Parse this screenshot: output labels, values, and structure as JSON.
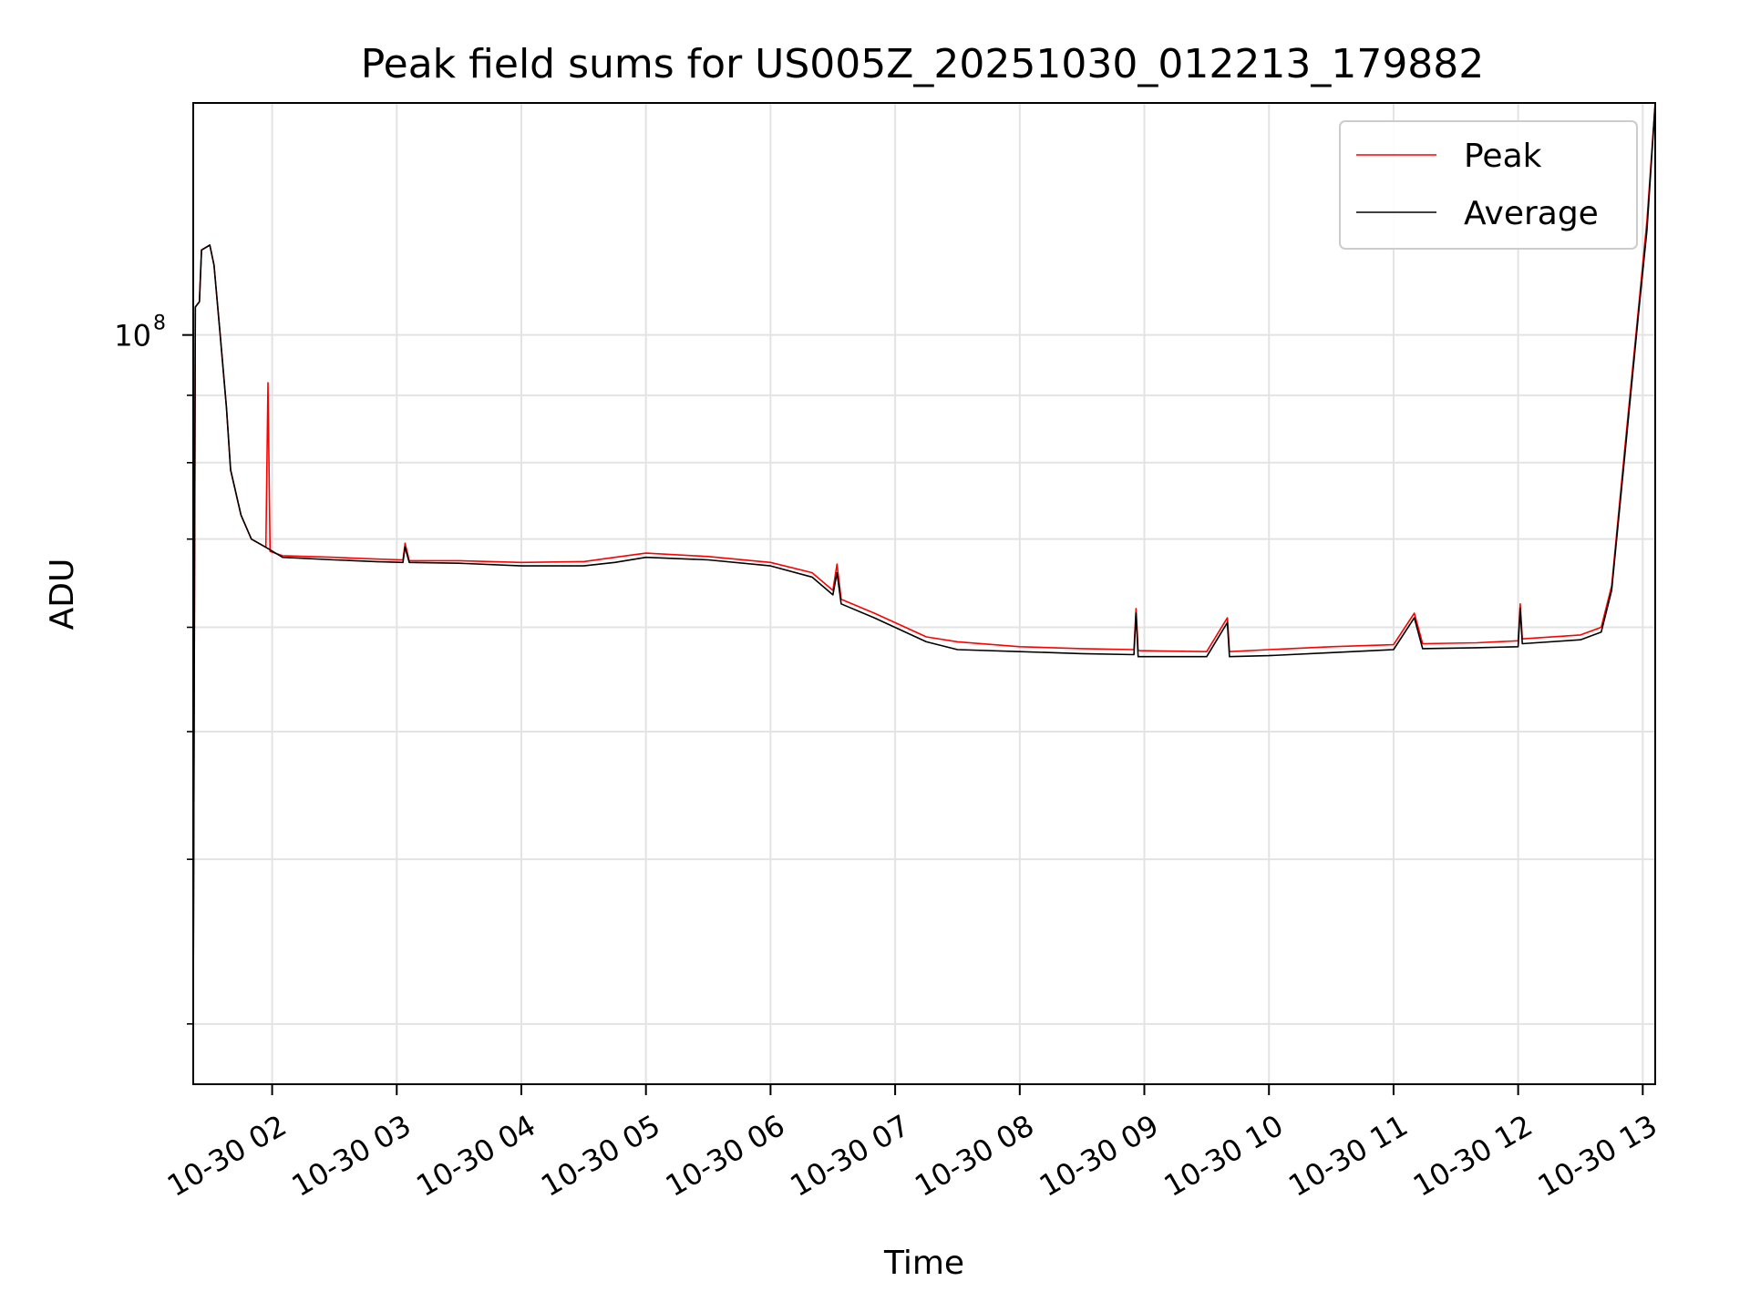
{
  "chart_data": {
    "type": "line",
    "title": "Peak field sums for US005Z_20251030_012213_179882",
    "xlabel": "Time",
    "ylabel": "ADU",
    "yscale": "log",
    "xlim": [
      "2025-10-30 01:22",
      "2025-10-30 13:06"
    ],
    "ylim": [
      27000000.0,
      150000000.0
    ],
    "x_ticks": [
      {
        "t": "2025-10-30 02:00",
        "label": "10-30 02"
      },
      {
        "t": "2025-10-30 03:00",
        "label": "10-30 03"
      },
      {
        "t": "2025-10-30 04:00",
        "label": "10-30 04"
      },
      {
        "t": "2025-10-30 05:00",
        "label": "10-30 05"
      },
      {
        "t": "2025-10-30 06:00",
        "label": "10-30 06"
      },
      {
        "t": "2025-10-30 07:00",
        "label": "10-30 07"
      },
      {
        "t": "2025-10-30 08:00",
        "label": "10-30 08"
      },
      {
        "t": "2025-10-30 09:00",
        "label": "10-30 09"
      },
      {
        "t": "2025-10-30 10:00",
        "label": "10-30 10"
      },
      {
        "t": "2025-10-30 11:00",
        "label": "10-30 11"
      },
      {
        "t": "2025-10-30 12:00",
        "label": "10-30 12"
      },
      {
        "t": "2025-10-30 13:00",
        "label": "10-30 13"
      }
    ],
    "y_major_ticks": [
      {
        "value": 100000000.0,
        "base": "10",
        "exp": "8"
      }
    ],
    "y_minor_ticks": [
      30000000.0,
      40000000.0,
      50000000.0,
      60000000.0,
      70000000.0,
      80000000.0,
      90000000.0
    ],
    "grid": true,
    "legend_position": "top-right",
    "series": [
      {
        "name": "Peak",
        "color": "#ff0000",
        "points": [
          [
            "2025-10-30 01:22",
            30000000.0
          ],
          [
            "2025-10-30 01:23",
            105000000.0
          ],
          [
            "2025-10-30 01:25",
            106000000.0
          ],
          [
            "2025-10-30 01:26",
            116000000.0
          ],
          [
            "2025-10-30 01:30",
            117000000.0
          ],
          [
            "2025-10-30 01:32",
            113000000.0
          ],
          [
            "2025-10-30 01:35",
            100000000.0
          ],
          [
            "2025-10-30 01:38",
            88000000.0
          ],
          [
            "2025-10-30 01:40",
            79000000.0
          ],
          [
            "2025-10-30 01:45",
            73000000.0
          ],
          [
            "2025-10-30 01:50",
            70000000.0
          ],
          [
            "2025-10-30 01:57",
            69000000.0
          ],
          [
            "2025-10-30 01:58",
            92000000.0
          ],
          [
            "2025-10-30 01:59",
            68500000.0
          ],
          [
            "2025-10-30 02:05",
            68000000.0
          ],
          [
            "2025-10-30 02:30",
            67800000.0
          ],
          [
            "2025-10-30 02:50",
            67600000.0
          ],
          [
            "2025-10-30 03:03",
            67500000.0
          ],
          [
            "2025-10-30 03:04",
            69500000.0
          ],
          [
            "2025-10-30 03:06",
            67400000.0
          ],
          [
            "2025-10-30 03:30",
            67400000.0
          ],
          [
            "2025-10-30 04:00",
            67200000.0
          ],
          [
            "2025-10-30 04:30",
            67300000.0
          ],
          [
            "2025-10-30 04:45",
            67800000.0
          ],
          [
            "2025-10-30 05:00",
            68300000.0
          ],
          [
            "2025-10-30 05:30",
            67900000.0
          ],
          [
            "2025-10-30 06:00",
            67200000.0
          ],
          [
            "2025-10-30 06:20",
            66000000.0
          ],
          [
            "2025-10-30 06:30",
            64000000.0
          ],
          [
            "2025-10-30 06:32",
            67000000.0
          ],
          [
            "2025-10-30 06:34",
            63000000.0
          ],
          [
            "2025-10-30 06:50",
            61500000.0
          ],
          [
            "2025-10-30 07:15",
            59000000.0
          ],
          [
            "2025-10-30 07:30",
            58500000.0
          ],
          [
            "2025-10-30 08:00",
            58000000.0
          ],
          [
            "2025-10-30 08:30",
            57800000.0
          ],
          [
            "2025-10-30 08:55",
            57700000.0
          ],
          [
            "2025-10-30 08:56",
            62000000.0
          ],
          [
            "2025-10-30 08:57",
            57600000.0
          ],
          [
            "2025-10-30 09:30",
            57500000.0
          ],
          [
            "2025-10-30 09:40",
            61000000.0
          ],
          [
            "2025-10-30 09:41",
            57500000.0
          ],
          [
            "2025-10-30 10:00",
            57700000.0
          ],
          [
            "2025-10-30 10:30",
            58000000.0
          ],
          [
            "2025-10-30 11:00",
            58200000.0
          ],
          [
            "2025-10-30 11:10",
            61500000.0
          ],
          [
            "2025-10-30 11:14",
            58300000.0
          ],
          [
            "2025-10-30 11:40",
            58400000.0
          ],
          [
            "2025-10-30 12:00",
            58600000.0
          ],
          [
            "2025-10-30 12:01",
            62500000.0
          ],
          [
            "2025-10-30 12:02",
            58800000.0
          ],
          [
            "2025-10-30 12:30",
            59200000.0
          ],
          [
            "2025-10-30 12:40",
            60000000.0
          ],
          [
            "2025-10-30 12:45",
            64500000.0
          ],
          [
            "2025-10-30 12:52",
            84000000.0
          ],
          [
            "2025-10-30 12:58",
            105000000.0
          ],
          [
            "2025-10-30 13:02",
            122000000.0
          ],
          [
            "2025-10-30 13:06",
            150000000.0
          ]
        ]
      },
      {
        "name": "Average",
        "color": "#000000",
        "points": [
          [
            "2025-10-30 01:22",
            30000000.0
          ],
          [
            "2025-10-30 01:23",
            105000000.0
          ],
          [
            "2025-10-30 01:25",
            106000000.0
          ],
          [
            "2025-10-30 01:26",
            116000000.0
          ],
          [
            "2025-10-30 01:30",
            117000000.0
          ],
          [
            "2025-10-30 01:32",
            113000000.0
          ],
          [
            "2025-10-30 01:35",
            100000000.0
          ],
          [
            "2025-10-30 01:38",
            88000000.0
          ],
          [
            "2025-10-30 01:40",
            79000000.0
          ],
          [
            "2025-10-30 01:45",
            73000000.0
          ],
          [
            "2025-10-30 01:50",
            70000000.0
          ],
          [
            "2025-10-30 01:57",
            69000000.0
          ],
          [
            "2025-10-30 02:05",
            67800000.0
          ],
          [
            "2025-10-30 02:30",
            67500000.0
          ],
          [
            "2025-10-30 02:50",
            67300000.0
          ],
          [
            "2025-10-30 03:03",
            67200000.0
          ],
          [
            "2025-10-30 03:04",
            69000000.0
          ],
          [
            "2025-10-30 03:06",
            67200000.0
          ],
          [
            "2025-10-30 03:30",
            67100000.0
          ],
          [
            "2025-10-30 04:00",
            66800000.0
          ],
          [
            "2025-10-30 04:30",
            66800000.0
          ],
          [
            "2025-10-30 04:45",
            67200000.0
          ],
          [
            "2025-10-30 05:00",
            67800000.0
          ],
          [
            "2025-10-30 05:30",
            67500000.0
          ],
          [
            "2025-10-30 06:00",
            66800000.0
          ],
          [
            "2025-10-30 06:20",
            65500000.0
          ],
          [
            "2025-10-30 06:30",
            63500000.0
          ],
          [
            "2025-10-30 06:32",
            66000000.0
          ],
          [
            "2025-10-30 06:34",
            62500000.0
          ],
          [
            "2025-10-30 06:50",
            61000000.0
          ],
          [
            "2025-10-30 07:15",
            58500000.0
          ],
          [
            "2025-10-30 07:30",
            57700000.0
          ],
          [
            "2025-10-30 08:00",
            57500000.0
          ],
          [
            "2025-10-30 08:30",
            57300000.0
          ],
          [
            "2025-10-30 08:55",
            57200000.0
          ],
          [
            "2025-10-30 08:56",
            61500000.0
          ],
          [
            "2025-10-30 08:57",
            57000000.0
          ],
          [
            "2025-10-30 09:30",
            57000000.0
          ],
          [
            "2025-10-30 09:40",
            60500000.0
          ],
          [
            "2025-10-30 09:41",
            57000000.0
          ],
          [
            "2025-10-30 10:00",
            57100000.0
          ],
          [
            "2025-10-30 10:30",
            57400000.0
          ],
          [
            "2025-10-30 11:00",
            57700000.0
          ],
          [
            "2025-10-30 11:10",
            61000000.0
          ],
          [
            "2025-10-30 11:14",
            57800000.0
          ],
          [
            "2025-10-30 11:40",
            57900000.0
          ],
          [
            "2025-10-30 12:00",
            58000000.0
          ],
          [
            "2025-10-30 12:01",
            62000000.0
          ],
          [
            "2025-10-30 12:02",
            58300000.0
          ],
          [
            "2025-10-30 12:30",
            58700000.0
          ],
          [
            "2025-10-30 12:40",
            59500000.0
          ],
          [
            "2025-10-30 12:45",
            64000000.0
          ],
          [
            "2025-10-30 12:52",
            83000000.0
          ],
          [
            "2025-10-30 12:58",
            104000000.0
          ],
          [
            "2025-10-30 13:02",
            120000000.0
          ],
          [
            "2025-10-30 13:06",
            150000000.0
          ]
        ]
      }
    ]
  }
}
